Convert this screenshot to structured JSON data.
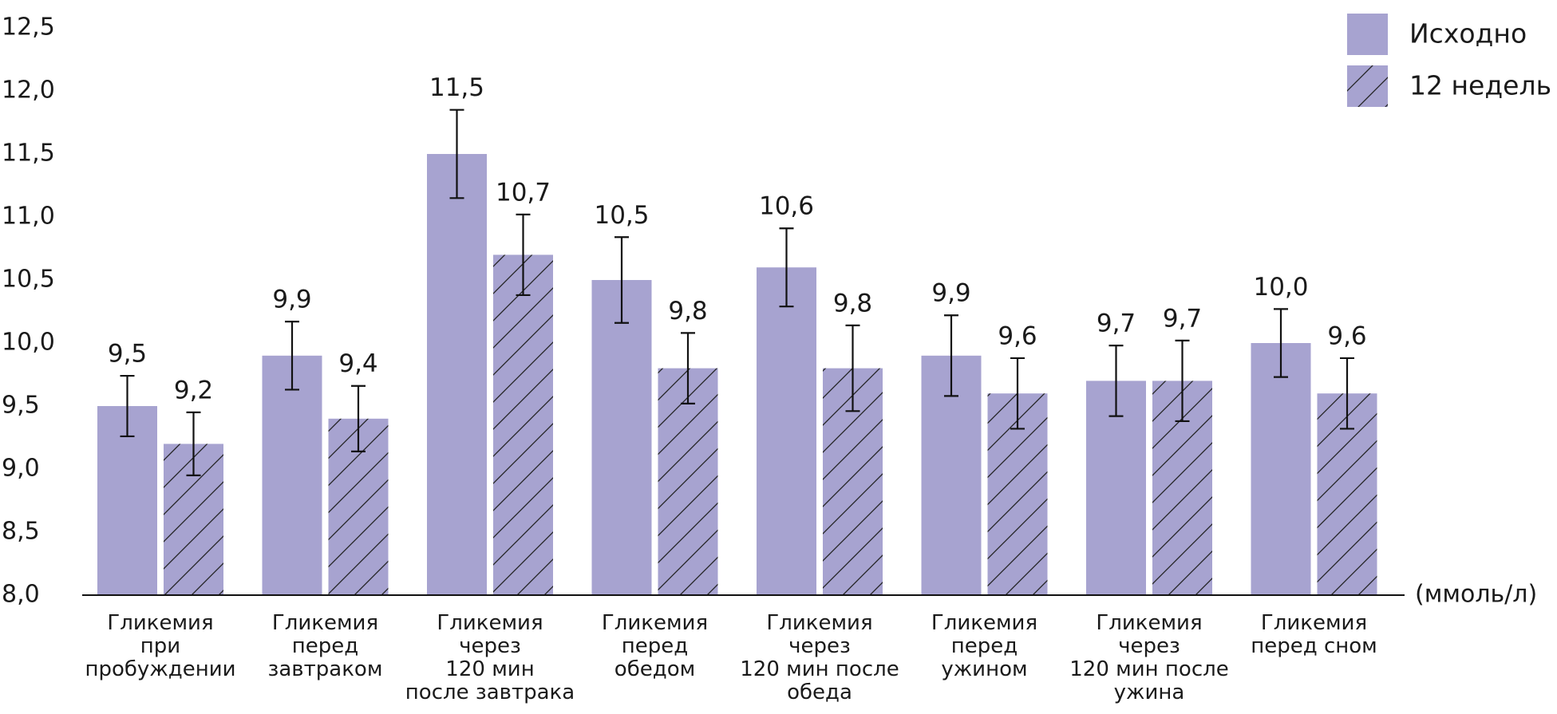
{
  "chart_data": {
    "type": "bar",
    "y_unit": "(ммоль/л)",
    "categories": [
      "Гликемия\nпри\nпробуждении",
      "Гликемия\nперед\nзавтраком",
      "Гликемия\nчерез\n120 мин\nпосле завтрака",
      "Гликемия\nперед\nобедом",
      "Гликемия\nчерез\n120 мин после\nобеда",
      "Гликемия\nперед\nужином",
      "Гликемия\nчерез\n120 мин после\nужина",
      "Гликемия\nперед сном"
    ],
    "series": [
      {
        "name": "Исходно",
        "color": "#a7a3d0",
        "pattern": "solid",
        "values": [
          9.5,
          9.9,
          11.5,
          10.5,
          10.6,
          9.9,
          9.7,
          10.0
        ],
        "value_labels": [
          "9,5",
          "9,9",
          "11,5",
          "10,5",
          "10,6",
          "9,9",
          "9,7",
          "10,0"
        ],
        "errors": [
          0.24,
          0.27,
          0.35,
          0.34,
          0.31,
          0.32,
          0.28,
          0.27
        ]
      },
      {
        "name": "12 недель",
        "color": "#a7a3d0",
        "pattern": "hatch",
        "values": [
          9.2,
          9.4,
          10.7,
          9.8,
          9.8,
          9.6,
          9.7,
          9.6
        ],
        "value_labels": [
          "9,2",
          "9,4",
          "10,7",
          "9,8",
          "9,8",
          "9,6",
          "9,7",
          "9,6"
        ],
        "errors": [
          0.25,
          0.26,
          0.32,
          0.28,
          0.34,
          0.28,
          0.32,
          0.28
        ]
      }
    ],
    "ylim": [
      8.0,
      12.5
    ],
    "yticks": [
      {
        "value": 8.0,
        "label": "8,0"
      },
      {
        "value": 8.5,
        "label": "8,5"
      },
      {
        "value": 9.0,
        "label": "9,0"
      },
      {
        "value": 9.5,
        "label": "9,5"
      },
      {
        "value": 10.0,
        "label": "10,0"
      },
      {
        "value": 10.5,
        "label": "10,5"
      },
      {
        "value": 11.0,
        "label": "11,0"
      },
      {
        "value": 11.5,
        "label": "11,5"
      },
      {
        "value": 12.0,
        "label": "12,0"
      },
      {
        "value": 12.5,
        "label": "12,5"
      }
    ],
    "grid": false,
    "legend": "top-right"
  }
}
